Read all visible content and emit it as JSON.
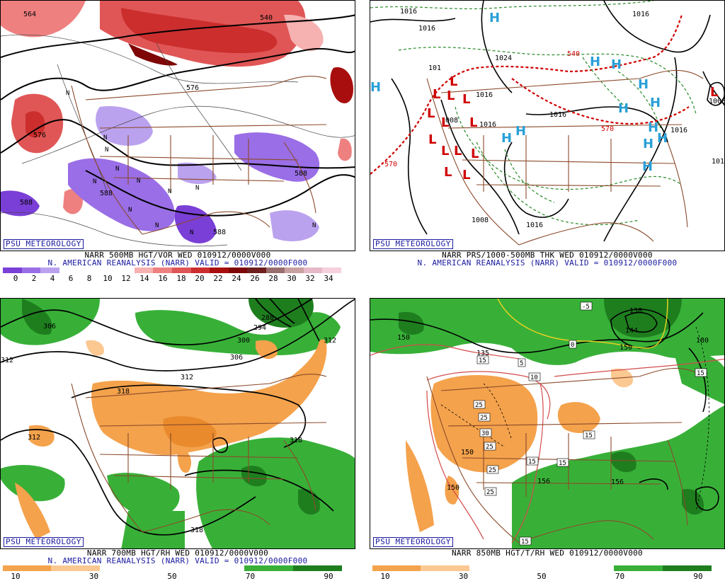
{
  "brand": "PSU METEOROLOGY",
  "panels": [
    {
      "id": "vor500",
      "caption1": "NARR 500MB HGT/VOR WED 010912/0000V000",
      "caption2": "N. AMERICAN REANALYSIS (NARR) VALID = 010912/0000F000",
      "colorbar": {
        "colors": [
          "#7a3fd6",
          "#9a6ee6",
          "#bba2ef",
          "#ffffff",
          "#ffffff",
          "#ffffff",
          "#ffffff",
          "#f6b1b1",
          "#ee8080",
          "#e05656",
          "#cc2e2e",
          "#a80e0e",
          "#7e0606",
          "#6e1e1e",
          "#9a6e6e",
          "#c8a0a0",
          "#e6b8c8",
          "#f6d0dc"
        ],
        "labels": [
          "0",
          "2",
          "4",
          "6",
          "8",
          "10",
          "12",
          "14",
          "16",
          "18",
          "20",
          "22",
          "24",
          "26",
          "28",
          "30",
          "32",
          "34"
        ]
      },
      "contour_labels": [
        "564",
        "576",
        "588",
        "588",
        "588",
        "540",
        "576",
        "588"
      ],
      "symbols": [
        "N",
        "N",
        "N",
        "N",
        "N",
        "N",
        "N",
        "N",
        "N",
        "N",
        "N",
        "N"
      ]
    },
    {
      "id": "prs1000",
      "caption1": "NARR PRS/1000-500MB THK WED 010912/0000V000",
      "caption2": "N. AMERICAN REANALYSIS (NARR) VALID = 010912/0000F000",
      "contour_labels": [
        "1016",
        "1016",
        "1008",
        "1016",
        "1024",
        "1016",
        "1016",
        "1008",
        "1016",
        "1008",
        "1016",
        "1008",
        "1016",
        "101",
        "540",
        "570",
        "570",
        "101"
      ],
      "symbols_h": [
        "H",
        "H",
        "H",
        "H",
        "H",
        "H",
        "H",
        "H",
        "H",
        "H",
        "H",
        "H",
        "H"
      ],
      "symbols_l": [
        "L",
        "L",
        "L",
        "L",
        "L",
        "L",
        "L",
        "L",
        "L",
        "L",
        "L",
        "L",
        "L",
        "L"
      ]
    },
    {
      "id": "rh700",
      "caption1": "NARR 700MB HGT/RH WED 010912/0000V000",
      "caption2": "N. AMERICAN REANALYSIS (NARR) VALID = 010912/0000F000",
      "colorbar": {
        "colors": [
          "#f4a24c",
          "#fbc891",
          "#ffffff",
          "#ffffff",
          "#ffffff",
          "#38b038",
          "#1e7e1e"
        ],
        "labels": [
          "10",
          "30",
          "50",
          "70",
          "90"
        ]
      },
      "contour_labels": [
        "306",
        "288",
        "294",
        "300",
        "306",
        "312",
        "312",
        "318",
        "312",
        "318",
        "318",
        "312"
      ]
    },
    {
      "id": "rh850",
      "caption1": "NARR 850MB HGT/T/RH WED 010912/0000V000",
      "caption2": "",
      "colorbar": {
        "colors": [
          "#f4a24c",
          "#fbc891",
          "#ffffff",
          "#ffffff",
          "#ffffff",
          "#38b038",
          "#1e7e1e"
        ],
        "labels": [
          "10",
          "30",
          "50",
          "70",
          "90"
        ]
      },
      "contour_labels": [
        "150",
        "135",
        "150",
        "144",
        "138",
        "150",
        "156",
        "156",
        "150",
        "150",
        "150",
        "180"
      ],
      "temp_labels": [
        "-5",
        "0",
        "5",
        "10",
        "15",
        "15",
        "15",
        "25",
        "25",
        "30",
        "25",
        "25",
        "25",
        "15",
        "15",
        "15"
      ]
    }
  ]
}
